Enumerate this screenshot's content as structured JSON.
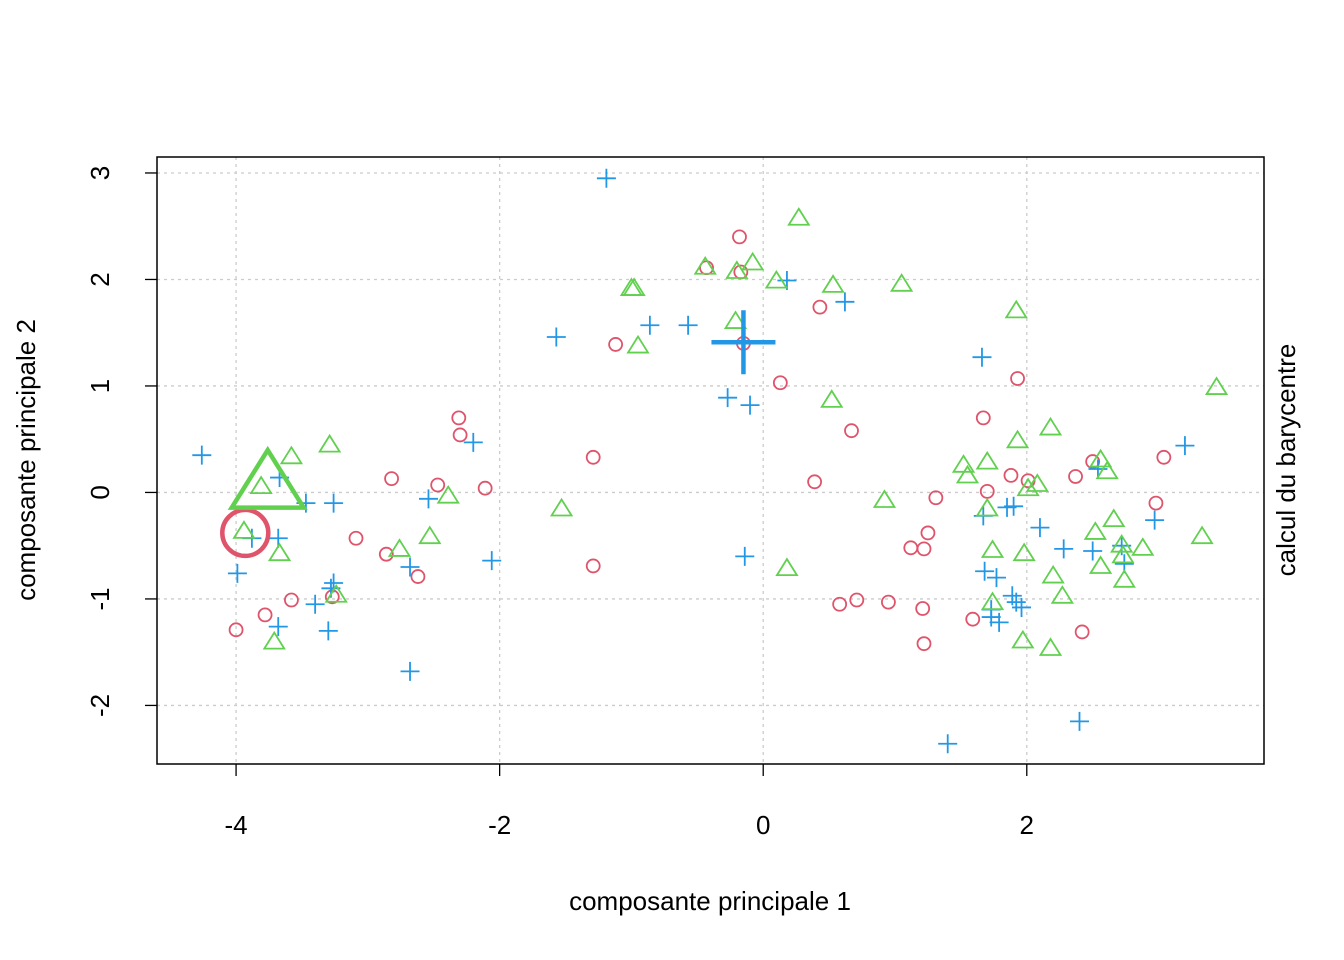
{
  "chart_data": {
    "type": "scatter",
    "xlabel": "composante principale 1",
    "ylabel": "composante principale 2",
    "right_label": "calcul du barycentre",
    "xlim": [
      -4.6,
      3.8
    ],
    "ylim": [
      -2.55,
      3.15
    ],
    "xticks": [
      -4,
      -2,
      0,
      2
    ],
    "yticks": [
      -2,
      -1,
      0,
      1,
      2,
      3
    ],
    "grid": true,
    "series": [
      {
        "color": "#DF536B",
        "marker": "circle",
        "points": [
          [
            -0.18,
            2.4
          ],
          [
            -0.43,
            2.11
          ],
          [
            -0.17,
            2.07
          ],
          [
            -1.12,
            1.39
          ],
          [
            -0.15,
            1.4
          ],
          [
            0.13,
            1.03
          ],
          [
            0.43,
            1.74
          ],
          [
            0.67,
            0.58
          ],
          [
            0.39,
            0.1
          ],
          [
            -2.31,
            0.7
          ],
          [
            -2.3,
            0.54
          ],
          [
            -1.29,
            0.33
          ],
          [
            -2.82,
            0.13
          ],
          [
            -2.47,
            0.07
          ],
          [
            -2.11,
            0.04
          ],
          [
            -3.09,
            -0.43
          ],
          [
            -2.86,
            -0.58
          ],
          [
            -2.62,
            -0.79
          ],
          [
            -1.29,
            -0.69
          ],
          [
            -3.27,
            -0.98
          ],
          [
            -3.78,
            -1.15
          ],
          [
            -3.58,
            -1.01
          ],
          [
            -4.0,
            -1.29
          ],
          [
            1.67,
            0.7
          ],
          [
            1.93,
            1.07
          ],
          [
            1.7,
            0.01
          ],
          [
            1.88,
            0.16
          ],
          [
            2.01,
            0.11
          ],
          [
            2.37,
            0.15
          ],
          [
            2.5,
            0.29
          ],
          [
            3.04,
            0.33
          ],
          [
            2.98,
            -0.1
          ],
          [
            1.31,
            -0.05
          ],
          [
            1.25,
            -0.38
          ],
          [
            1.12,
            -0.52
          ],
          [
            1.22,
            -0.53
          ],
          [
            0.58,
            -1.05
          ],
          [
            0.71,
            -1.01
          ],
          [
            0.95,
            -1.03
          ],
          [
            1.21,
            -1.09
          ],
          [
            1.22,
            -1.42
          ],
          [
            1.59,
            -1.19
          ],
          [
            2.42,
            -1.31
          ]
        ],
        "center": [
          -3.93,
          -0.38
        ]
      },
      {
        "color": "#2297E6",
        "marker": "plus",
        "points": [
          [
            -1.19,
            2.95
          ],
          [
            0.18,
            1.99
          ],
          [
            0.62,
            1.79
          ],
          [
            -0.86,
            1.57
          ],
          [
            -0.57,
            1.57
          ],
          [
            -1.57,
            1.46
          ],
          [
            -0.27,
            0.89
          ],
          [
            -0.1,
            0.82
          ],
          [
            1.66,
            1.27
          ],
          [
            3.2,
            0.44
          ],
          [
            -4.26,
            0.35
          ],
          [
            -2.2,
            0.47
          ],
          [
            -3.67,
            0.14
          ],
          [
            -3.47,
            -0.1
          ],
          [
            -3.26,
            -0.1
          ],
          [
            -2.54,
            -0.06
          ],
          [
            -3.88,
            -0.43
          ],
          [
            -3.68,
            -0.43
          ],
          [
            -3.99,
            -0.76
          ],
          [
            -2.68,
            -0.7
          ],
          [
            -2.06,
            -0.64
          ],
          [
            -3.26,
            -0.85
          ],
          [
            -3.28,
            -0.9
          ],
          [
            -3.4,
            -1.05
          ],
          [
            -3.68,
            -1.26
          ],
          [
            -3.3,
            -1.3
          ],
          [
            -2.68,
            -1.68
          ],
          [
            -0.14,
            -0.6
          ],
          [
            1.67,
            -0.22
          ],
          [
            1.85,
            -0.14
          ],
          [
            1.9,
            -0.13
          ],
          [
            2.1,
            -0.33
          ],
          [
            2.28,
            -0.53
          ],
          [
            2.5,
            -0.55
          ],
          [
            2.54,
            0.22
          ],
          [
            2.72,
            -0.5
          ],
          [
            2.74,
            -0.67
          ],
          [
            2.97,
            -0.26
          ],
          [
            1.68,
            -0.74
          ],
          [
            1.77,
            -0.8
          ],
          [
            1.73,
            -1.1
          ],
          [
            1.73,
            -1.17
          ],
          [
            1.79,
            -1.22
          ],
          [
            1.89,
            -0.97
          ],
          [
            1.92,
            -1.03
          ],
          [
            1.96,
            -1.08
          ],
          [
            1.4,
            -2.36
          ],
          [
            2.4,
            -2.15
          ]
        ],
        "center": [
          -0.15,
          1.41
        ]
      },
      {
        "color": "#61D04F",
        "marker": "triangle",
        "points": [
          [
            0.27,
            2.57
          ],
          [
            -0.44,
            2.11
          ],
          [
            -0.2,
            2.07
          ],
          [
            -0.08,
            2.15
          ],
          [
            0.1,
            1.98
          ],
          [
            0.53,
            1.94
          ],
          [
            1.05,
            1.95
          ],
          [
            -0.98,
            1.91
          ],
          [
            -1.0,
            1.91
          ],
          [
            -0.95,
            1.37
          ],
          [
            -0.21,
            1.6
          ],
          [
            1.92,
            1.7
          ],
          [
            3.44,
            0.98
          ],
          [
            0.52,
            0.86
          ],
          [
            -3.29,
            0.44
          ],
          [
            -3.58,
            0.33
          ],
          [
            -3.81,
            0.05
          ],
          [
            -2.39,
            -0.04
          ],
          [
            -1.53,
            -0.16
          ],
          [
            -3.94,
            -0.37
          ],
          [
            -3.67,
            -0.58
          ],
          [
            -2.76,
            -0.54
          ],
          [
            -2.53,
            -0.42
          ],
          [
            -3.24,
            -0.97
          ],
          [
            -3.71,
            -1.41
          ],
          [
            0.92,
            -0.08
          ],
          [
            0.18,
            -0.72
          ],
          [
            1.52,
            0.25
          ],
          [
            1.55,
            0.15
          ],
          [
            1.7,
            0.28
          ],
          [
            1.93,
            0.48
          ],
          [
            2.18,
            0.6
          ],
          [
            2.01,
            0.03
          ],
          [
            2.56,
            0.3
          ],
          [
            2.61,
            0.19
          ],
          [
            2.08,
            0.07
          ],
          [
            1.7,
            -0.16
          ],
          [
            1.74,
            -0.55
          ],
          [
            1.98,
            -0.58
          ],
          [
            2.52,
            -0.38
          ],
          [
            2.66,
            -0.26
          ],
          [
            2.72,
            -0.5
          ],
          [
            2.73,
            -0.6
          ],
          [
            2.88,
            -0.53
          ],
          [
            3.33,
            -0.42
          ],
          [
            2.2,
            -0.79
          ],
          [
            2.27,
            -0.98
          ],
          [
            2.56,
            -0.7
          ],
          [
            2.74,
            -0.83
          ],
          [
            1.74,
            -1.04
          ],
          [
            1.97,
            -1.4
          ],
          [
            2.18,
            -1.47
          ]
        ],
        "center": [
          -3.76,
          0.06
        ]
      }
    ]
  }
}
